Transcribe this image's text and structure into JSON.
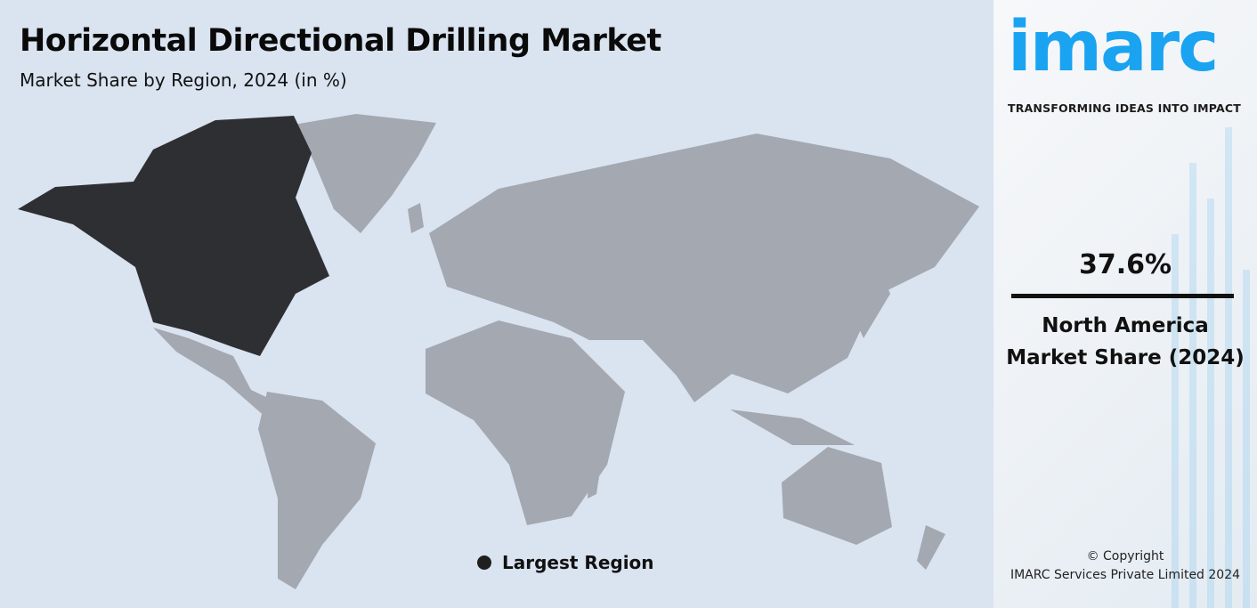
{
  "header": {
    "title": "Horizontal Directional Drilling Market",
    "subtitle": "Market Share by Region, 2024 (in %)"
  },
  "map": {
    "highlighted_region": "North America",
    "colors": {
      "highlight": "#2e2f33",
      "other": "#a3a8b1",
      "background": "#dae3f0"
    }
  },
  "legend": {
    "label": "Largest Region"
  },
  "brand": {
    "logo": "imarc",
    "tagline": "TRANSFORMING IDEAS INTO IMPACT",
    "color": "#1aa3f0"
  },
  "stat": {
    "value": "37.6%",
    "region": "North America",
    "caption": "Market Share (2024)"
  },
  "footer": {
    "line1": "© Copyright",
    "line2": "IMARC Services Private Limited 2024"
  }
}
